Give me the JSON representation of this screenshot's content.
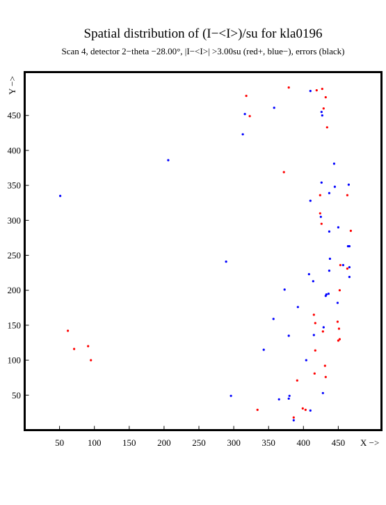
{
  "chart_data": {
    "type": "scatter",
    "title": "Spatial distribution of (I−<I>)/su for kla0196",
    "subtitle": "Scan  4, detector 2−theta −28.00°, |I−<I>| >3.00su (red+, blue−), errors (black)",
    "xlabel": "X −>",
    "ylabel": "Y −>",
    "xlim": [
      0,
      512
    ],
    "ylim": [
      0,
      512
    ],
    "xticks": [
      50,
      100,
      150,
      200,
      250,
      300,
      350,
      400,
      450
    ],
    "yticks": [
      50,
      100,
      150,
      200,
      250,
      300,
      350,
      400,
      450
    ],
    "colors": {
      "positive": "#ff0000",
      "negative": "#0000ff",
      "error": "#000000"
    },
    "series": [
      {
        "name": "red+",
        "color": "#ff0000",
        "points": [
          [
            318,
            478
          ],
          [
            323,
            449
          ],
          [
            379,
            490
          ],
          [
            419,
            486
          ],
          [
            427,
            488
          ],
          [
            432,
            476
          ],
          [
            429,
            460
          ],
          [
            434,
            433
          ],
          [
            372,
            369
          ],
          [
            424,
            336
          ],
          [
            463,
            336
          ],
          [
            424,
            310
          ],
          [
            426,
            295
          ],
          [
            468,
            285
          ],
          [
            463,
            231
          ],
          [
            453,
            236
          ],
          [
            452,
            200
          ],
          [
            415,
            165
          ],
          [
            417,
            153
          ],
          [
            449,
            155
          ],
          [
            451,
            145
          ],
          [
            428,
            141
          ],
          [
            452,
            130
          ],
          [
            450,
            128
          ],
          [
            417,
            114
          ],
          [
            431,
            92
          ],
          [
            391,
            71
          ],
          [
            416,
            81
          ],
          [
            432,
            76
          ],
          [
            399,
            31
          ],
          [
            403,
            29
          ],
          [
            386,
            18
          ],
          [
            334,
            29
          ],
          [
            62,
            142
          ],
          [
            71,
            116
          ],
          [
            91,
            120
          ],
          [
            95,
            100
          ]
        ]
      },
      {
        "name": "blue−",
        "color": "#0000ff",
        "points": [
          [
            410,
            485
          ],
          [
            358,
            461
          ],
          [
            426,
            455
          ],
          [
            427,
            450
          ],
          [
            316,
            452
          ],
          [
            313,
            423
          ],
          [
            206,
            386
          ],
          [
            444,
            381
          ],
          [
            426,
            354
          ],
          [
            445,
            348
          ],
          [
            465,
            351
          ],
          [
            437,
            339
          ],
          [
            410,
            328
          ],
          [
            425,
            305
          ],
          [
            450,
            290
          ],
          [
            437,
            284
          ],
          [
            466,
            263
          ],
          [
            464,
            263
          ],
          [
            438,
            245
          ],
          [
            289,
            241
          ],
          [
            466,
            233
          ],
          [
            457,
            236
          ],
          [
            437,
            228
          ],
          [
            408,
            223
          ],
          [
            466,
            219
          ],
          [
            414,
            213
          ],
          [
            373,
            201
          ],
          [
            436,
            195
          ],
          [
            433,
            194
          ],
          [
            432,
            192
          ],
          [
            449,
            182
          ],
          [
            392,
            176
          ],
          [
            357,
            159
          ],
          [
            429,
            147
          ],
          [
            415,
            136
          ],
          [
            379,
            135
          ],
          [
            343,
            115
          ],
          [
            404,
            100
          ],
          [
            428,
            53
          ],
          [
            296,
            49
          ],
          [
            380,
            49
          ],
          [
            379,
            45
          ],
          [
            365,
            44
          ],
          [
            410,
            28
          ],
          [
            386,
            14
          ],
          [
            51,
            335
          ]
        ]
      }
    ]
  }
}
